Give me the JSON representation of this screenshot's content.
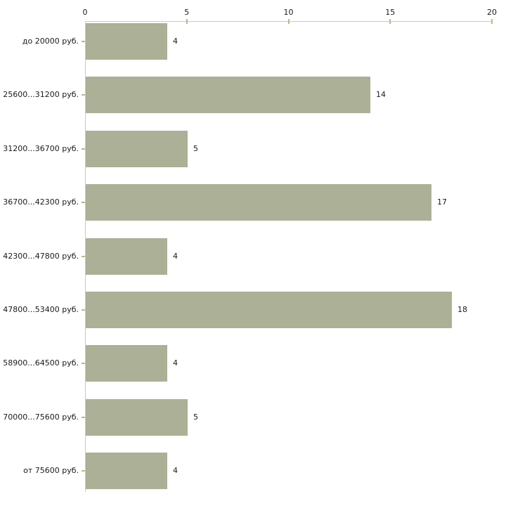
{
  "chart_data": {
    "type": "bar",
    "orientation": "horizontal",
    "title": "",
    "xlabel": "",
    "ylabel": "",
    "categories": [
      "до 20000 руб.",
      "25600...31200 руб.",
      "31200...36700 руб.",
      "36700...42300 руб.",
      "42300...47800 руб.",
      "47800...53400 руб.",
      "58900...64500 руб.",
      "70000...75600 руб.",
      "от 75600 руб."
    ],
    "values": [
      4,
      14,
      5,
      17,
      4,
      18,
      4,
      5,
      4
    ],
    "value_labels_shown": true,
    "xlim": [
      0,
      20
    ],
    "x_ticks": [
      0,
      5,
      10,
      15,
      20
    ],
    "x_axis_position": "top",
    "grid": false,
    "legend": false,
    "colors": {
      "bar": "#abb096",
      "axis_line": "#c9c9c6",
      "tick_mark": "#b9b98b",
      "text": "#1a1a1a",
      "background": "#ffffff"
    }
  }
}
